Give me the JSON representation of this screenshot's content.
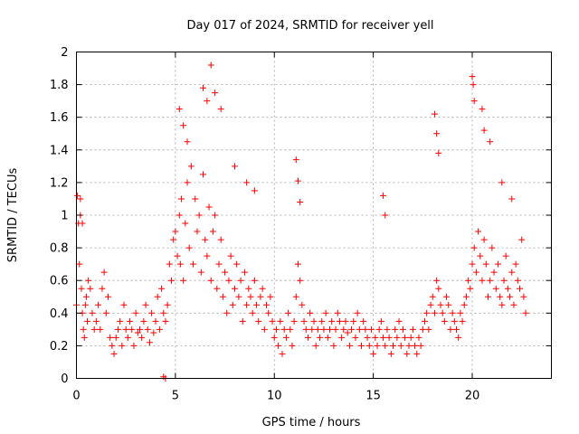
{
  "chart_data": {
    "type": "scatter",
    "title": "Day 017 of 2024, SRMTID for receiver yell",
    "xlabel": "GPS time / hours",
    "ylabel": "SRMTID / TECUs",
    "xlim": [
      0,
      24
    ],
    "ylim": [
      0,
      2
    ],
    "xticks": [
      0,
      5,
      10,
      15,
      20
    ],
    "xtick_labels": [
      "0",
      "5",
      "10",
      "15",
      "20"
    ],
    "yticks": [
      0,
      0.2,
      0.4,
      0.6,
      0.8,
      1,
      1.2,
      1.4,
      1.6,
      1.8,
      2
    ],
    "ytick_labels": [
      "0",
      "0.2",
      "0.4",
      "0.6",
      "0.8",
      "1",
      "1.2",
      "1.4",
      "1.6",
      "1.8",
      "2"
    ],
    "grid": true,
    "marker": "+",
    "marker_color": "#ff0000",
    "series": [
      {
        "name": "SRMTID",
        "x": [
          0.0,
          0.1,
          0.15,
          0.2,
          0.25,
          0.3,
          0.35,
          0.4,
          0.45,
          0.5,
          0.55,
          0.6,
          0.7,
          0.8,
          0.9,
          1.0,
          1.1,
          1.2,
          1.3,
          1.4,
          1.5,
          1.6,
          1.7,
          1.8,
          1.9,
          2.0,
          2.1,
          2.2,
          2.3,
          2.4,
          2.5,
          2.6,
          2.7,
          2.8,
          2.9,
          3.0,
          3.1,
          3.2,
          3.3,
          3.4,
          3.5,
          3.6,
          3.7,
          3.8,
          3.9,
          4.0,
          4.1,
          4.2,
          4.3,
          4.4,
          4.5,
          4.6,
          4.7,
          4.8,
          4.9,
          5.0,
          5.1,
          5.2,
          5.25,
          5.3,
          5.4,
          5.5,
          5.6,
          5.7,
          5.8,
          5.9,
          6.0,
          6.1,
          6.2,
          6.3,
          6.4,
          6.5,
          6.6,
          6.7,
          6.8,
          6.9,
          7.0,
          7.1,
          7.2,
          7.3,
          7.4,
          7.5,
          7.6,
          7.7,
          7.8,
          7.9,
          8.0,
          8.1,
          8.2,
          8.3,
          8.4,
          8.5,
          8.6,
          8.7,
          8.8,
          8.9,
          9.0,
          9.1,
          9.2,
          9.3,
          9.4,
          9.5,
          9.6,
          9.7,
          9.8,
          9.9,
          10.0,
          10.1,
          10.2,
          10.3,
          10.4,
          10.5,
          10.6,
          10.7,
          10.8,
          10.9,
          11.0,
          11.1,
          11.2,
          11.3,
          11.4,
          11.5,
          11.6,
          11.7,
          11.8,
          11.9,
          12.0,
          12.1,
          12.2,
          12.3,
          12.4,
          12.5,
          12.6,
          12.7,
          12.8,
          12.9,
          13.0,
          13.1,
          13.2,
          13.3,
          13.4,
          13.5,
          13.6,
          13.7,
          13.8,
          13.9,
          14.0,
          14.1,
          14.2,
          14.3,
          14.4,
          14.5,
          14.6,
          14.7,
          14.8,
          14.9,
          15.0,
          15.1,
          15.2,
          15.3,
          15.4,
          15.5,
          15.6,
          15.7,
          15.8,
          15.9,
          16.0,
          16.1,
          16.2,
          16.3,
          16.4,
          16.5,
          16.6,
          16.7,
          16.8,
          16.9,
          17.0,
          17.1,
          17.2,
          17.3,
          17.4,
          17.5,
          17.6,
          17.7,
          17.8,
          17.9,
          18.0,
          18.1,
          18.2,
          18.3,
          18.4,
          18.5,
          18.6,
          18.7,
          18.8,
          18.9,
          19.0,
          19.1,
          19.2,
          19.3,
          19.4,
          19.5,
          19.6,
          19.7,
          19.8,
          19.9,
          20.0,
          20.1,
          20.2,
          20.3,
          20.4,
          20.5,
          20.6,
          20.7,
          20.8,
          20.9,
          21.0,
          21.1,
          21.2,
          21.3,
          21.4,
          21.5,
          21.6,
          21.7,
          21.8,
          21.9,
          22.0,
          22.1,
          22.2,
          22.3,
          22.4,
          22.5,
          22.6,
          22.7,
          0.05,
          0.2,
          0.3,
          5.2,
          5.4,
          5.6,
          6.4,
          6.6,
          6.8,
          7.0,
          7.3,
          8.0,
          8.6,
          9.0,
          11.1,
          11.2,
          11.3,
          15.5,
          15.6,
          18.1,
          18.2,
          18.3,
          20.0,
          20.05,
          20.1,
          20.5,
          20.6,
          20.9,
          21.5,
          22.0,
          4.4,
          4.5
        ],
        "y": [
          0.45,
          0.95,
          0.7,
          1.1,
          0.55,
          0.4,
          0.3,
          0.25,
          0.45,
          0.5,
          0.35,
          0.6,
          0.55,
          0.4,
          0.3,
          0.35,
          0.45,
          0.3,
          0.55,
          0.65,
          0.4,
          0.5,
          0.25,
          0.2,
          0.15,
          0.25,
          0.3,
          0.35,
          0.2,
          0.45,
          0.3,
          0.25,
          0.35,
          0.3,
          0.2,
          0.4,
          0.28,
          0.3,
          0.25,
          0.35,
          0.45,
          0.3,
          0.22,
          0.4,
          0.28,
          0.35,
          0.5,
          0.3,
          0.55,
          0.4,
          0.35,
          0.45,
          0.7,
          0.6,
          0.85,
          0.9,
          0.75,
          1.0,
          0.7,
          1.1,
          0.6,
          0.95,
          1.2,
          0.8,
          1.3,
          0.7,
          1.1,
          0.9,
          1.0,
          0.65,
          1.25,
          0.85,
          0.75,
          1.05,
          0.6,
          0.9,
          1.0,
          0.55,
          0.7,
          0.85,
          0.5,
          0.65,
          0.4,
          0.6,
          0.75,
          0.45,
          0.55,
          0.7,
          0.5,
          0.6,
          0.35,
          0.65,
          0.45,
          0.55,
          0.5,
          0.4,
          0.6,
          0.45,
          0.35,
          0.5,
          0.55,
          0.3,
          0.45,
          0.4,
          0.5,
          0.35,
          0.25,
          0.3,
          0.2,
          0.35,
          0.15,
          0.3,
          0.25,
          0.4,
          0.3,
          0.2,
          0.35,
          0.5,
          0.7,
          0.6,
          0.45,
          0.35,
          0.3,
          0.25,
          0.4,
          0.3,
          0.35,
          0.2,
          0.3,
          0.25,
          0.35,
          0.3,
          0.4,
          0.25,
          0.3,
          0.35,
          0.2,
          0.3,
          0.4,
          0.35,
          0.25,
          0.3,
          0.35,
          0.28,
          0.2,
          0.3,
          0.35,
          0.25,
          0.4,
          0.3,
          0.2,
          0.35,
          0.3,
          0.25,
          0.2,
          0.3,
          0.15,
          0.25,
          0.2,
          0.3,
          0.35,
          0.25,
          0.2,
          0.3,
          0.25,
          0.15,
          0.2,
          0.3,
          0.25,
          0.35,
          0.2,
          0.3,
          0.25,
          0.15,
          0.2,
          0.25,
          0.3,
          0.2,
          0.15,
          0.25,
          0.2,
          0.3,
          0.35,
          0.4,
          0.3,
          0.45,
          0.5,
          0.4,
          0.6,
          0.55,
          0.45,
          0.4,
          0.35,
          0.5,
          0.45,
          0.3,
          0.4,
          0.35,
          0.3,
          0.25,
          0.4,
          0.35,
          0.45,
          0.5,
          0.6,
          0.55,
          0.7,
          0.8,
          0.65,
          0.9,
          0.75,
          0.6,
          0.85,
          0.7,
          0.5,
          0.6,
          0.8,
          0.65,
          0.55,
          0.7,
          0.5,
          0.45,
          0.6,
          0.75,
          0.55,
          0.5,
          0.65,
          0.45,
          0.7,
          0.6,
          0.55,
          0.85,
          0.5,
          0.4,
          1.12,
          1.0,
          0.95,
          1.65,
          1.55,
          1.45,
          1.78,
          1.7,
          1.92,
          1.75,
          1.65,
          1.3,
          1.2,
          1.15,
          1.34,
          1.21,
          1.08,
          1.12,
          1.0,
          1.62,
          1.5,
          1.38,
          1.85,
          1.8,
          1.7,
          1.65,
          1.52,
          1.45,
          1.2,
          1.1,
          0.01,
          0.0
        ]
      }
    ]
  }
}
